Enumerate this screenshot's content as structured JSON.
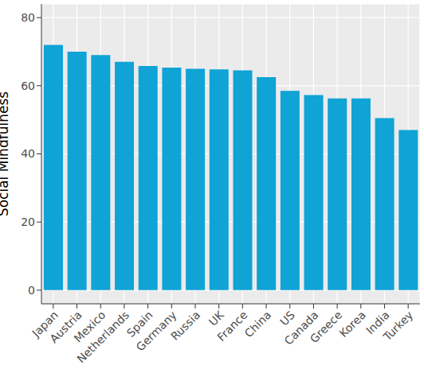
{
  "chart_data": {
    "type": "bar",
    "y_label": "Social Mindfulness",
    "categories": [
      "Japan",
      "Austria",
      "Mexico",
      "Netherlands",
      "Spain",
      "Germany",
      "Russia",
      "UK",
      "France",
      "China",
      "US",
      "Canada",
      "Greece",
      "Korea",
      "India",
      "Turkey"
    ],
    "values": [
      72,
      70,
      69,
      67,
      65.8,
      65.3,
      65,
      64.8,
      64.5,
      62.5,
      58.5,
      57.3,
      56.3,
      56.3,
      50.5,
      47
    ],
    "color": "#0fa3d6",
    "ylim": [
      -4,
      84
    ],
    "yticks": [
      0,
      20,
      40,
      60,
      80
    ],
    "grid": true
  }
}
